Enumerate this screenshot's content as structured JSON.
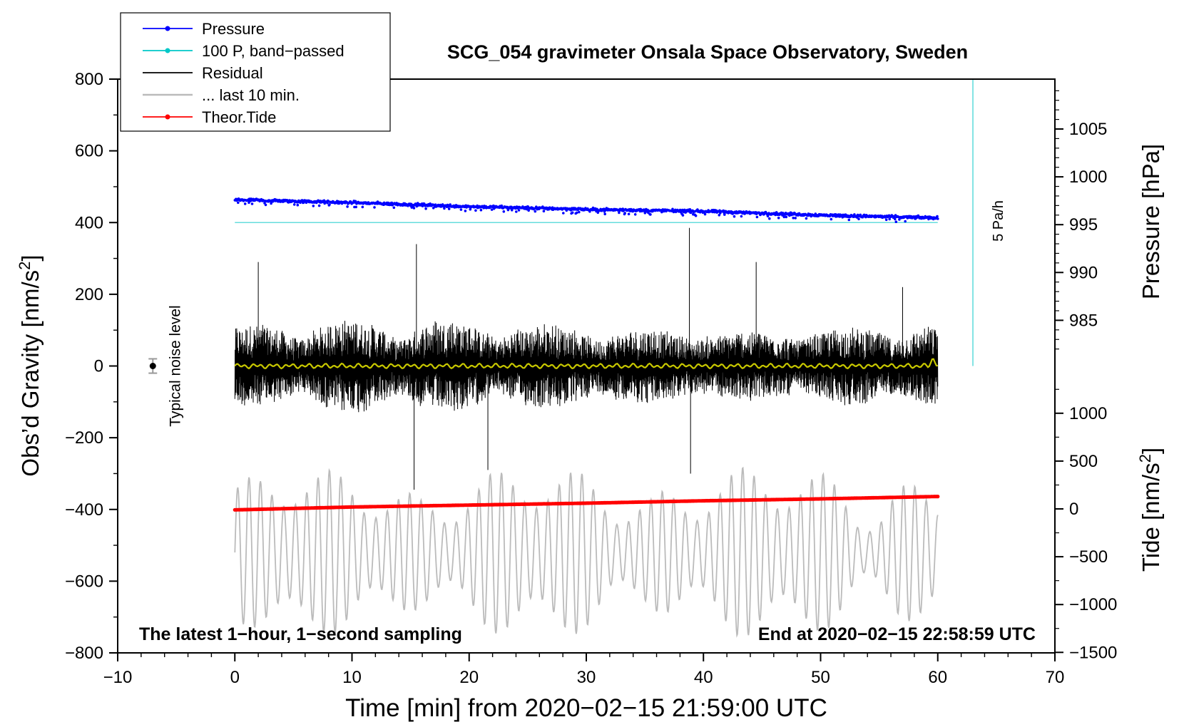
{
  "chart_data": {
    "type": "line",
    "title": "SCG_054 gravimeter Onsala Space Observatory, Sweden",
    "xlabel": "Time [min] from 2020−02−15 21:59:00 UTC",
    "ylabel_left": "Obs’d Gravity [nm/s²]",
    "ylabel_right_pressure": "Pressure [hPa]",
    "ylabel_right_tide": "Tide [nm/s²]",
    "xlim": [
      -10,
      70
    ],
    "ylim": [
      -800,
      800
    ],
    "x_ticks": [
      "−10",
      "0",
      "10",
      "20",
      "30",
      "40",
      "50",
      "60",
      "70"
    ],
    "y_ticks": [
      "800",
      "600",
      "400",
      "200",
      "0",
      "−200",
      "−400",
      "−600",
      "−800"
    ],
    "pressure_ticks": [
      "1005",
      "1000",
      "995",
      "990",
      "985"
    ],
    "tide_ticks": [
      "1000",
      "500",
      "0",
      "−500",
      "−1000",
      "−1500"
    ],
    "legend": [
      {
        "label": "Pressure",
        "color": "#0000ff",
        "marker": true
      },
      {
        "label": "100 P, band−passed",
        "color": "#00c8c8",
        "marker": true
      },
      {
        "label": "Residual",
        "color": "#000000",
        "marker": false
      },
      {
        "label": "... last 10 min.",
        "color": "#bbbbbb",
        "marker": false
      },
      {
        "label": "Theor.Tide",
        "color": "#ff0000",
        "marker": true
      }
    ],
    "series": [
      {
        "name": "Pressure",
        "unit": "hPa",
        "x": [
          0,
          10,
          20,
          30,
          40,
          50,
          60
        ],
        "values": [
          997.6,
          997.3,
          996.9,
          996.6,
          996.4,
          996.0,
          995.7
        ]
      },
      {
        "name": "100 P, band−passed",
        "unit": "nm/s²",
        "x": [
          0,
          60
        ],
        "values": [
          400,
          400
        ]
      },
      {
        "name": "Residual",
        "unit": "nm/s²",
        "x_range": [
          0,
          60
        ],
        "approx_amplitude": 150,
        "max_peak": 385,
        "min_peak": -345
      },
      {
        "name": "... last 10 min.",
        "unit": "nm/s²",
        "x_range": [
          0,
          60
        ],
        "center": -520,
        "approx_amplitude": 180
      },
      {
        "name": "Theor.Tide",
        "unit": "nm/s²",
        "x": [
          0,
          10,
          20,
          30,
          40,
          50,
          60
        ],
        "values": [
          -10,
          20,
          40,
          60,
          85,
          105,
          130
        ]
      },
      {
        "name": "Smoothed residual",
        "unit": "nm/s²",
        "x": [
          0,
          60
        ],
        "values": [
          0,
          0
        ]
      }
    ],
    "scale_bar": {
      "label": "5 Pa/h",
      "x": 63,
      "y_from": 0,
      "y_to": 800
    },
    "noise_indicator": {
      "label": "Typical noise level",
      "x": -7,
      "y": 0,
      "err": 20
    },
    "annotation_left": "The latest 1−hour, 1−second sampling",
    "annotation_right": "End at 2020−02−15 22:58:59 UTC"
  }
}
